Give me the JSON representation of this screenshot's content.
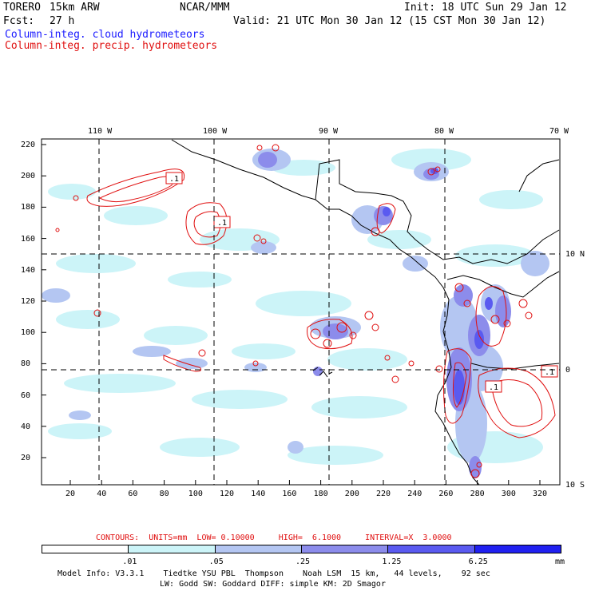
{
  "header": {
    "model": "TORERO",
    "resolution": "15km ARW",
    "org": "NCAR/MMM",
    "init": "Init: 18 UTC Sun 29 Jan 12",
    "fcst_label": "Fcst:",
    "fcst_hours": "27 h",
    "valid": "Valid: 21 UTC Mon 30 Jan 12 (15 CST Mon 30 Jan 12)",
    "field1": "Column-integ. cloud hydrometeors",
    "field2": "Column-integ. precip. hydrometeors"
  },
  "map": {
    "lon_labels": [
      "110 W",
      "100 W",
      "90 W",
      "80 W",
      "70 W"
    ],
    "lat_labels": [
      "10 N",
      "0",
      "10 S"
    ],
    "y_ticks": [
      "220",
      "200",
      "180",
      "160",
      "140",
      "120",
      "100",
      "80",
      "60",
      "40",
      "20"
    ],
    "x_ticks": [
      "20",
      "40",
      "60",
      "80",
      "100",
      "120",
      "140",
      "160",
      "180",
      "200",
      "220",
      "240",
      "260",
      "280",
      "300",
      "320"
    ],
    "contour_box_labels": [
      ".1",
      ".1",
      ".1",
      ".1"
    ]
  },
  "contour_info": {
    "text": "CONTOURS:  UNITS=mm  LOW= 0.10000     HIGH=  6.1000     INTERVAL=X  3.0000"
  },
  "colorbar": {
    "labels": [
      ".01",
      ".05",
      ".25",
      "1.25",
      "6.25"
    ],
    "units": "mm",
    "colors": [
      "#ffffff",
      "#ccf4f8",
      "#b4c6f2",
      "#8c8ceb",
      "#5a5af0",
      "#2020f0"
    ]
  },
  "footer": {
    "line1": "Model Info: V3.3.1    Tiedtke YSU PBL  Thompson    Noah LSM  15 km,   44 levels,    92 sec",
    "line2": "LW: Godd SW: Goddard DIFF: simple KM: 2D Smagor"
  }
}
